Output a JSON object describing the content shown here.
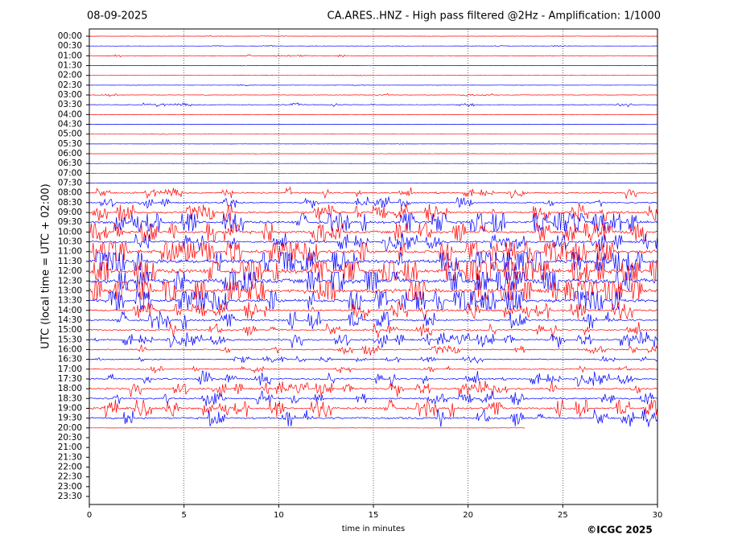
{
  "chart_data": {
    "type": "helicorder",
    "date": "08-09-2025",
    "title": "CA.ARES..HNZ - High pass filtered @2Hz - Amplification: 1/1000",
    "ylabel": "UTC (local time = UTC + 02:00)",
    "xlabel": "time in minutes",
    "credit": "©ICGC 2025",
    "xlim": [
      0,
      30
    ],
    "xticks": [
      0,
      5,
      10,
      15,
      20,
      25,
      30
    ],
    "grid": true,
    "colors": [
      "#ff0000",
      "#0000ff"
    ],
    "categories": [
      "00:00",
      "00:30",
      "01:00",
      "01:30",
      "02:00",
      "02:30",
      "03:00",
      "03:30",
      "04:00",
      "04:30",
      "05:00",
      "05:30",
      "06:00",
      "06:30",
      "07:00",
      "07:30",
      "08:00",
      "08:30",
      "09:00",
      "09:30",
      "10:00",
      "10:30",
      "11:00",
      "11:30",
      "12:00",
      "12:30",
      "13:00",
      "13:30",
      "14:00",
      "14:30",
      "15:00",
      "15:30",
      "16:00",
      "16:30",
      "17:00",
      "17:30",
      "18:00",
      "18:30",
      "19:00",
      "19:30",
      "20:00",
      "20:30",
      "21:00",
      "21:30",
      "22:00",
      "22:30",
      "23:00",
      "23:30"
    ],
    "values": [
      0.5,
      0.5,
      0.8,
      0.3,
      0.3,
      0.5,
      0.8,
      1,
      0.3,
      0.3,
      0.3,
      0.3,
      0.3,
      0.3,
      0.3,
      0.3,
      2,
      2,
      3,
      4,
      4,
      3,
      5,
      6,
      7,
      7,
      6,
      5,
      3,
      3,
      2.5,
      2.5,
      2,
      1.5,
      1.5,
      2.5,
      2.5,
      2.5,
      3,
      3,
      0.5,
      null,
      null,
      null,
      null,
      null,
      null,
      null
    ],
    "last_trace_end": 23
  }
}
